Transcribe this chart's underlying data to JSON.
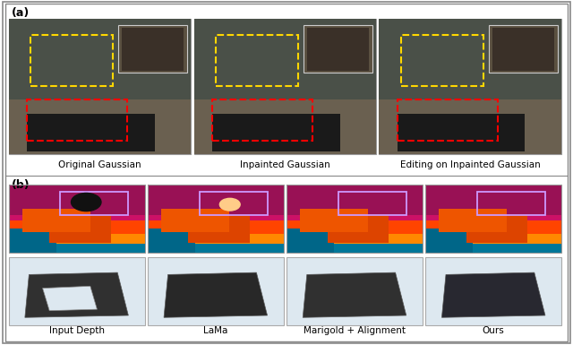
{
  "fig_width": 6.4,
  "fig_height": 3.85,
  "dpi": 100,
  "background_color": "#ffffff",
  "panel_a_label": "(a)",
  "panel_b_label": "(b)",
  "panel_a_captions": [
    "Original Gaussian",
    "Inpainted Gaussian",
    "Editing on Inpainted Gaussian"
  ],
  "panel_b_captions": [
    "Input Depth",
    "LaMa",
    "Marigold + Alignment",
    "Ours"
  ],
  "panel_a_bg": "#f0f0f0",
  "panel_b_bg": "#f0f0f0",
  "yellow_box_color": "#FFD700",
  "red_box_color": "#FF0000",
  "purple_box_color": "#CC99FF",
  "caption_fontsize": 7.5,
  "label_fontsize": 9,
  "outer_border_color": "#888888",
  "divider_color": "#888888"
}
